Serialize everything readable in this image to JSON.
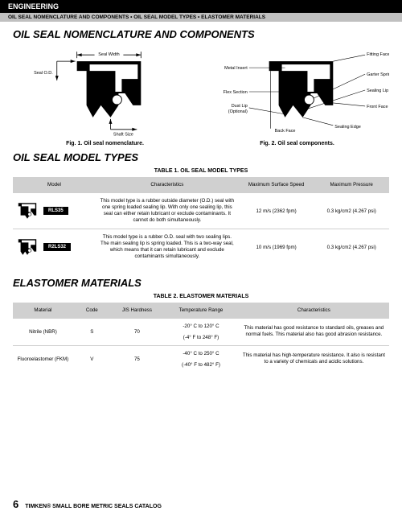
{
  "header": {
    "section": "ENGINEERING",
    "subtitle": "OIL SEAL NOMENCLATURE AND COMPONENTS • OIL SEAL MODEL TYPES • ELASTOMER MATERIALS"
  },
  "sections": {
    "nomenclature": {
      "title": "OIL SEAL NOMENCLATURE AND COMPONENTS"
    },
    "modelTypes": {
      "title": "OIL SEAL MODEL TYPES",
      "tableTitle": "TABLE 1. OIL SEAL MODEL TYPES"
    },
    "elastomer": {
      "title": "ELASTOMER MATERIALS",
      "tableTitle": "TABLE 2. ELASTOMER MATERIALS"
    }
  },
  "figures": {
    "fig1": {
      "caption": "Fig. 1. Oil seal nomenclature.",
      "labels": {
        "sealWidth": "Seal Width",
        "sealOD": "Seal O.D.",
        "shaftSize": "Shaft Size"
      }
    },
    "fig2": {
      "caption": "Fig. 2. Oil seal components.",
      "labels": {
        "metalInsert": "Metal Insert",
        "fittingFace": "Fitting Face",
        "garterSpring": "Garter Spring",
        "flexSection": "Flex Section",
        "sealingLip": "Sealing Lip",
        "dustLip": "Dust Lip",
        "dustLipSub": "(Optional)",
        "frontFace": "Front Face",
        "backFace": "Back Face",
        "sealingEdge": "Sealing Edge"
      }
    }
  },
  "table1": {
    "headers": {
      "model": "Model",
      "characteristics": "Characteristics",
      "maxSpeed": "Maximum Surface Speed",
      "maxPressure": "Maximum Pressure"
    },
    "rows": [
      {
        "model": "RLS35",
        "characteristics": "This model type is a rubber outside diameter (O.D.) seal with one spring loaded sealing lip. With only one sealing lip, this seal can either retain lubricant or exclude contaminants. It cannot do both simultaneously.",
        "maxSpeed": "12 m/s (2362 fpm)",
        "maxPressure": "0.3 kg/cm2 (4.267 psi)"
      },
      {
        "model": "R2LS32",
        "characteristics": "This model type is a rubber O.D. seal with two sealing lips. The main sealing lip is spring loaded. This is a two-way seal, which means that it can retain lubricant and exclude contaminants simultaneously.",
        "maxSpeed": "10 m/s (1969 fpm)",
        "maxPressure": "0.3 kg/cm2 (4.267 psi)"
      }
    ]
  },
  "table2": {
    "headers": {
      "material": "Material",
      "code": "Code",
      "hardness": "JIS Hardness",
      "tempRange": "Temperature Range",
      "characteristics": "Characteristics"
    },
    "rows": [
      {
        "material": "Nitrile (NBR)",
        "code": "S",
        "hardness": "70",
        "temp1": "-20° C to 120° C",
        "temp2": "(-4° F to 248° F)",
        "characteristics": "This material has good resistance to standard oils, greases and normal fuels. This material also has good abrasion resistance."
      },
      {
        "material": "Fluoroelastomer (FKM)",
        "code": "V",
        "hardness": "75",
        "temp1": "-40° C to 250° C",
        "temp2": "(-40° F to 482° F)",
        "characteristics": "This material has high-temperature resistance. It also is resistant to a variety of chemicals and acidic solutions."
      }
    ]
  },
  "footer": {
    "page": "6",
    "text": "TIMKEN® SMALL BORE METRIC SEALS CATALOG"
  },
  "colors": {
    "black": "#000000",
    "gray": "#c0c0c0",
    "tableHeader": "#d0d0d0",
    "white": "#ffffff"
  }
}
